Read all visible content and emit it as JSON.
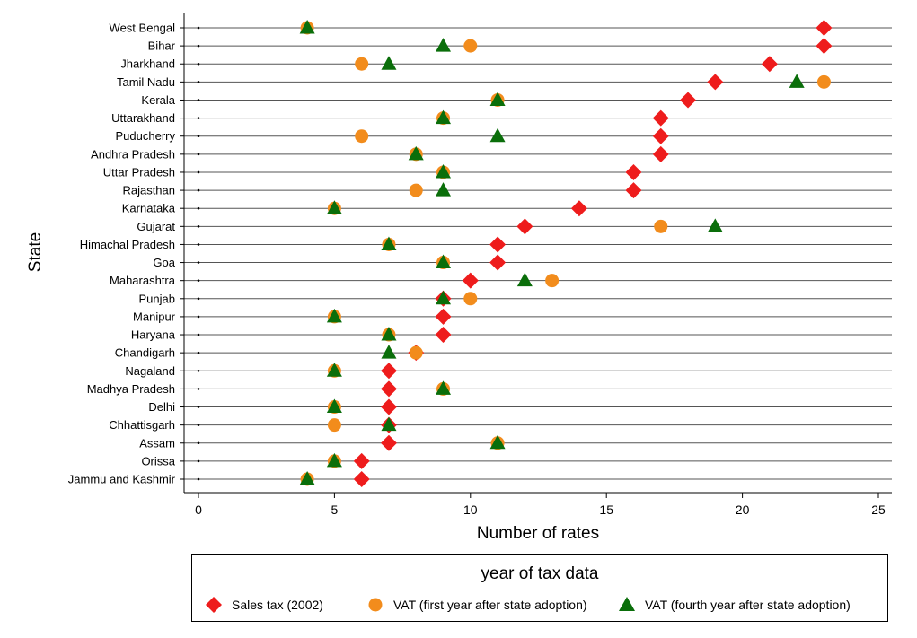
{
  "chart_data": {
    "type": "scatter",
    "ylabel": "State",
    "xlabel": "Number of rates",
    "xlim": [
      0,
      25
    ],
    "xticks": [
      0,
      5,
      10,
      15,
      20,
      25
    ],
    "categories": [
      "West Bengal",
      "Bihar",
      "Jharkhand",
      "Tamil Nadu",
      "Kerala",
      "Uttarakhand",
      "Puducherry",
      "Andhra Pradesh",
      "Uttar Pradesh",
      "Rajasthan",
      "Karnataka",
      "Gujarat",
      "Himachal Pradesh",
      "Goa",
      "Maharashtra",
      "Punjab",
      "Manipur",
      "Haryana",
      "Chandigarh",
      "Nagaland",
      "Madhya Pradesh",
      "Delhi",
      "Chhattisgarh",
      "Assam",
      "Orissa",
      "Jammu and Kashmir"
    ],
    "series": [
      {
        "name": "Sales tax (2002)",
        "color": "#ee1c1c",
        "marker": "diamond",
        "values": [
          23,
          23,
          21,
          19,
          18,
          17,
          17,
          17,
          16,
          16,
          14,
          12,
          11,
          11,
          10,
          9,
          9,
          9,
          8,
          7,
          7,
          7,
          7,
          7,
          6,
          6
        ]
      },
      {
        "name": "VAT (first year after state adoption)",
        "color": "#f28c1c",
        "marker": "circle",
        "values": [
          4,
          10,
          6,
          23,
          11,
          9,
          6,
          8,
          9,
          8,
          5,
          17,
          7,
          9,
          13,
          10,
          5,
          7,
          8,
          5,
          9,
          5,
          5,
          11,
          5,
          4
        ]
      },
      {
        "name": "VAT (fourth year after state adoption)",
        "color": "#0a6e0a",
        "marker": "triangle",
        "values": [
          4,
          9,
          7,
          22,
          11,
          9,
          11,
          8,
          9,
          9,
          5,
          19,
          7,
          9,
          12,
          9,
          5,
          7,
          7,
          5,
          9,
          5,
          7,
          11,
          5,
          4
        ]
      }
    ],
    "legend": {
      "title": "year of tax data",
      "position": "bottom"
    },
    "grid": true
  }
}
